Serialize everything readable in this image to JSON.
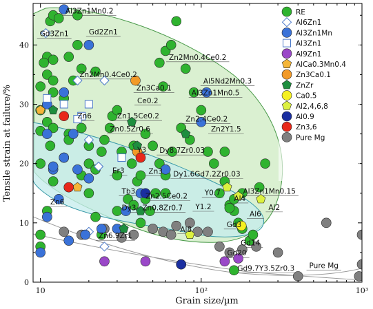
{
  "chart_data": {
    "type": "scatter",
    "title": "",
    "xlabel": "Grain size/µm",
    "ylabel": "Tensile strain at failure/%",
    "xscale": "log",
    "xlim": [
      9,
      1000
    ],
    "ylim": [
      0,
      47
    ],
    "xticks": [
      {
        "v": 10,
        "t": "10"
      },
      {
        "v": 100,
        "t": "10²"
      },
      {
        "v": 1000,
        "t": "10³"
      }
    ],
    "yticks": [
      0,
      10,
      20,
      30,
      40
    ],
    "grid": false,
    "legend": "top-right",
    "regions": [
      {
        "id": "re",
        "fill": "#cdebc2",
        "stroke": "#4a9a4a"
      },
      {
        "id": "zn",
        "fill": "#c4ecec",
        "stroke": "#3a9aa8"
      },
      {
        "id": "mg",
        "fill": "none",
        "stroke": "#9a9a9a"
      }
    ],
    "series": [
      {
        "name": "RE",
        "marker": "circle",
        "color": "#2fb32f",
        "points": [
          [
            11.5,
            44
          ],
          [
            12,
            45
          ],
          [
            13,
            44.5
          ],
          [
            17,
            45
          ],
          [
            11,
            38
          ],
          [
            10.5,
            37
          ],
          [
            12,
            37.5
          ],
          [
            15,
            38
          ],
          [
            17,
            40
          ],
          [
            10,
            33
          ],
          [
            11,
            35
          ],
          [
            12,
            34
          ],
          [
            16,
            34
          ],
          [
            18,
            36
          ],
          [
            22,
            35.5
          ],
          [
            12,
            32
          ],
          [
            14,
            31
          ],
          [
            10,
            29
          ],
          [
            11,
            27
          ],
          [
            12,
            26
          ],
          [
            15,
            25
          ],
          [
            10,
            25.5
          ],
          [
            11.5,
            23
          ],
          [
            14,
            21
          ],
          [
            10,
            20
          ],
          [
            12,
            17
          ],
          [
            15,
            16
          ],
          [
            11,
            12
          ],
          [
            10,
            8
          ],
          [
            10,
            6
          ],
          [
            18,
            18
          ],
          [
            20,
            20
          ],
          [
            22,
            19
          ],
          [
            18,
            26
          ],
          [
            20,
            23
          ],
          [
            25,
            24
          ],
          [
            24,
            22
          ],
          [
            27,
            26
          ],
          [
            28,
            28
          ],
          [
            30,
            29
          ],
          [
            32,
            22
          ],
          [
            30,
            18
          ],
          [
            37,
            20
          ],
          [
            40,
            17
          ],
          [
            35,
            14
          ],
          [
            38,
            13
          ],
          [
            42,
            10
          ],
          [
            45,
            25
          ],
          [
            50,
            23
          ],
          [
            55,
            20
          ],
          [
            60,
            18
          ],
          [
            58,
            33
          ],
          [
            55,
            37
          ],
          [
            60,
            39
          ],
          [
            65,
            40
          ],
          [
            70,
            44
          ],
          [
            80,
            36
          ],
          [
            90,
            32
          ],
          [
            100,
            29
          ],
          [
            75,
            26
          ],
          [
            85,
            24
          ],
          [
            110,
            22
          ],
          [
            120,
            20
          ],
          [
            140,
            17
          ],
          [
            130,
            15
          ],
          [
            150,
            13
          ],
          [
            160,
            12
          ],
          [
            170,
            10
          ],
          [
            180,
            9
          ],
          [
            200,
            7
          ],
          [
            210,
            8
          ],
          [
            180,
            15
          ],
          [
            230,
            16
          ],
          [
            250,
            20
          ],
          [
            140,
            22
          ],
          [
            160,
            14
          ],
          [
            150,
            12.5
          ],
          [
            45,
            14
          ],
          [
            48,
            12
          ],
          [
            60,
            15
          ],
          [
            20,
            15
          ],
          [
            22,
            11
          ],
          [
            24,
            8
          ],
          [
            30,
            12
          ],
          [
            15,
            24
          ],
          [
            38,
            23
          ],
          [
            42,
            18
          ],
          [
            66,
            22
          ],
          [
            52,
            15
          ],
          [
            160,
            2
          ]
        ]
      },
      {
        "name": "Al6Zn1",
        "marker": "diamond",
        "color": "#ffffff",
        "stroke": "#4a78c8",
        "points": [
          [
            10.8,
            42
          ],
          [
            17,
            34
          ],
          [
            25,
            34
          ],
          [
            20,
            24
          ],
          [
            23,
            19.5
          ],
          [
            20,
            8.5
          ],
          [
            25,
            6
          ]
        ]
      },
      {
        "name": "Al3Zn1Mn",
        "marker": "circle",
        "color": "#3a72d8",
        "points": [
          [
            14,
            46
          ],
          [
            20,
            40
          ],
          [
            14,
            32
          ],
          [
            11,
            30
          ],
          [
            11,
            25
          ],
          [
            16,
            25
          ],
          [
            14,
            21
          ],
          [
            17,
            19
          ],
          [
            20,
            17.5
          ],
          [
            12,
            19
          ],
          [
            13,
            14
          ],
          [
            11,
            11
          ],
          [
            24,
            9
          ],
          [
            19,
            8
          ],
          [
            15,
            7
          ],
          [
            30,
            9
          ],
          [
            34,
            12
          ],
          [
            42,
            15
          ],
          [
            60,
            19
          ],
          [
            108,
            32
          ],
          [
            100,
            27
          ],
          [
            10,
            5
          ],
          [
            12,
            19.5
          ]
        ]
      },
      {
        "name": "Al3Zn1",
        "marker": "square",
        "color": "#ffffff",
        "stroke": "#4a78c8",
        "points": [
          [
            11,
            31
          ],
          [
            14,
            30
          ],
          [
            18,
            28
          ],
          [
            20,
            30
          ],
          [
            32,
            21
          ],
          [
            17,
            27.5
          ]
        ]
      },
      {
        "name": "Al9Zn1",
        "marker": "circle",
        "color": "#9a48c8",
        "points": [
          [
            25,
            3.5
          ],
          [
            45,
            3.5
          ],
          [
            140,
            3.5
          ],
          [
            170,
            4
          ],
          [
            75,
            3
          ]
        ]
      },
      {
        "name": "AlCa0.3Mn0.4",
        "marker": "pentagon",
        "color": "#f5b638",
        "points": [
          [
            10,
            29
          ],
          [
            17,
            16
          ]
        ]
      },
      {
        "name": "Zn3Ca0.1",
        "marker": "circle",
        "color": "#f29a28",
        "points": [
          [
            39,
            34
          ],
          [
            40,
            22
          ]
        ]
      },
      {
        "name": "ZnZr",
        "marker": "pentagon",
        "color": "#1e8e3e",
        "points": [
          [
            12,
            29
          ],
          [
            37,
            27
          ],
          [
            40,
            23
          ],
          [
            42,
            12
          ],
          [
            45,
            15
          ],
          [
            33,
            9
          ],
          [
            80,
            25
          ]
        ]
      },
      {
        "name": "Ca0.5",
        "marker": "circle",
        "color": "#f5f020",
        "points": [
          [
            178,
            9.5
          ]
        ]
      },
      {
        "name": "Al2,4,6,8",
        "marker": "pentagon",
        "color": "#dcf040",
        "points": [
          [
            145,
            16
          ],
          [
            170,
            14.5
          ],
          [
            235,
            14
          ],
          [
            85,
            8
          ]
        ]
      },
      {
        "name": "Al0.9",
        "marker": "circle",
        "color": "#1a2ea0",
        "points": [
          [
            45,
            15
          ],
          [
            75,
            3
          ]
        ]
      },
      {
        "name": "Zn3,6",
        "marker": "circle",
        "color": "#e8281a",
        "points": [
          [
            14,
            28
          ],
          [
            15,
            16
          ],
          [
            42,
            21
          ]
        ]
      },
      {
        "name": "Pure Mg",
        "marker": "circle",
        "color": "#808080",
        "points": [
          [
            14,
            8.5
          ],
          [
            18,
            8
          ],
          [
            25,
            9
          ],
          [
            32,
            7.5
          ],
          [
            38,
            8
          ],
          [
            50,
            9
          ],
          [
            58,
            8.5
          ],
          [
            65,
            8
          ],
          [
            70,
            9.5
          ],
          [
            85,
            10
          ],
          [
            95,
            8.5
          ],
          [
            110,
            8.5
          ],
          [
            130,
            6
          ],
          [
            150,
            5
          ],
          [
            180,
            5.5
          ],
          [
            220,
            6
          ],
          [
            300,
            5
          ],
          [
            400,
            1
          ],
          [
            600,
            10
          ],
          [
            1000,
            8
          ],
          [
            1000,
            3
          ],
          [
            960,
            1
          ]
        ]
      }
    ],
    "annotations": [
      {
        "text": "Al3Zn1Mn0.2",
        "x": 14.3,
        "y": 45.3
      },
      {
        "text": "Gd3Zn1",
        "x": 9.9,
        "y": 41.5
      },
      {
        "text": "Gd2Zn1",
        "x": 20,
        "y": 41.8
      },
      {
        "text": "Zn2Mn0.4Ce0.2",
        "x": 63,
        "y": 37.5
      },
      {
        "text": "Zn2Mn0.4Ce0.2",
        "x": 17.5,
        "y": 34.6
      },
      {
        "text": "Al5Nd2Mn0.3",
        "x": 103,
        "y": 33.5
      },
      {
        "text": "Zn3Ca0.1",
        "x": 39.5,
        "y": 32.3
      },
      {
        "text": "Al3Zn1Mn0.5",
        "x": 87,
        "y": 31.5
      },
      {
        "text": "Ce0.2",
        "x": 40,
        "y": 30.2
      },
      {
        "text": "Zn6",
        "x": 17,
        "y": 27.6
      },
      {
        "text": "Zn1.5Ce0.2",
        "x": 30,
        "y": 27.6
      },
      {
        "text": "Zn2.4Ce0.2",
        "x": 80,
        "y": 27.1
      },
      {
        "text": "Zn0.5Zr0.6",
        "x": 27,
        "y": 25.4
      },
      {
        "text": "Zn2Y1.5",
        "x": 115,
        "y": 25.4
      },
      {
        "text": "Y3",
        "x": 40,
        "y": 21.9
      },
      {
        "text": "Dy8.7Zr0.03",
        "x": 55,
        "y": 21.8
      },
      {
        "text": "Er3",
        "x": 28,
        "y": 18.4
      },
      {
        "text": "Zn3",
        "x": 47,
        "y": 18.3
      },
      {
        "text": "Dy1.6Gd7.2Zr0.03",
        "x": 67,
        "y": 17.8
      },
      {
        "text": "Tb3",
        "x": 32,
        "y": 14.9
      },
      {
        "text": "Zn2.5Ce0.2",
        "x": 45,
        "y": 14.1
      },
      {
        "text": "Y0.7",
        "x": 105,
        "y": 14.7
      },
      {
        "text": "Al3Zn1Mn0.15",
        "x": 182,
        "y": 14.9
      },
      {
        "text": "Zn6",
        "x": 11.5,
        "y": 13.1
      },
      {
        "text": "Dy3",
        "x": 32,
        "y": 12.1
      },
      {
        "text": "Zn0.8Zr0.7",
        "x": 43,
        "y": 12.1
      },
      {
        "text": "Al4",
        "x": 160,
        "y": 13.7
      },
      {
        "text": "Y1.2",
        "x": 92,
        "y": 12.3
      },
      {
        "text": "Al2",
        "x": 262,
        "y": 12.2
      },
      {
        "text": "Al6",
        "x": 200,
        "y": 11.1
      },
      {
        "text": "Gd3",
        "x": 144,
        "y": 9.3
      },
      {
        "text": "Al8",
        "x": 74,
        "y": 8.5
      },
      {
        "text": "Zn6.9Zr1",
        "x": 23,
        "y": 7.4
      },
      {
        "text": "Gd14",
        "x": 176,
        "y": 6.2
      },
      {
        "text": "Gd20",
        "x": 145,
        "y": 4.5
      },
      {
        "text": "Pure Mg",
        "x": 470,
        "y": 2.4
      },
      {
        "text": "Gd9.7Y3.5Zr0.3",
        "x": 168,
        "y": 1.9
      }
    ]
  }
}
